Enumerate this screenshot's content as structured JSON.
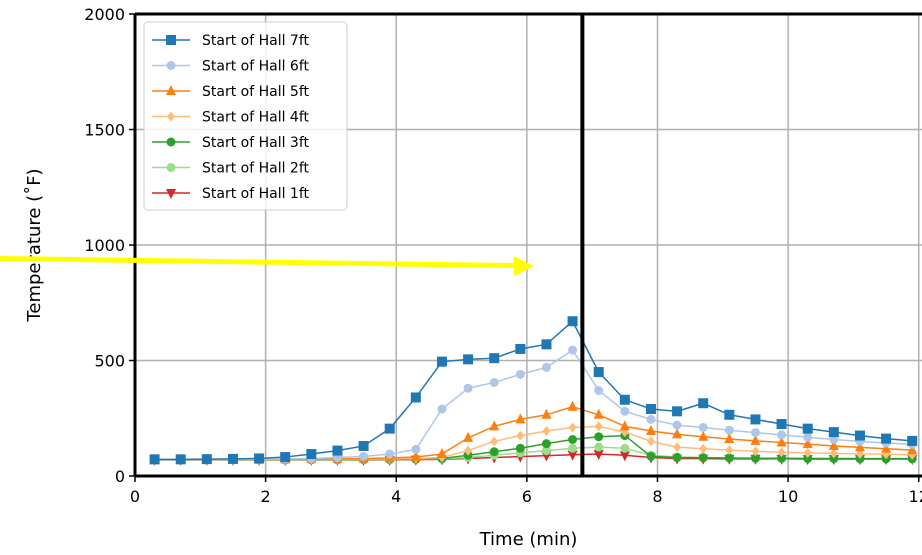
{
  "chart_data": {
    "type": "line",
    "title": "",
    "xlabel": "Time (min)",
    "ylabel": "Temperature (˚F)",
    "xlim": [
      0,
      12
    ],
    "ylim": [
      0,
      2000
    ],
    "xticks": [
      "0",
      "2",
      "4",
      "6",
      "8",
      "10",
      "12"
    ],
    "yticks": [
      "0",
      "500",
      "1000",
      "1500",
      "2000"
    ],
    "grid": true,
    "legend_position": "top-left",
    "vertical_line_x": 6.85,
    "annotation_arrow": {
      "color": "#ffff00",
      "from": [
        -2.2,
        950
      ],
      "to": [
        6.2,
        930
      ]
    },
    "x": [
      0.3,
      0.7,
      1.1,
      1.5,
      1.9,
      2.3,
      2.7,
      3.1,
      3.5,
      3.9,
      4.3,
      4.7,
      5.1,
      5.5,
      5.9,
      6.3,
      6.7,
      7.1,
      7.5,
      7.9,
      8.3,
      8.7,
      9.1,
      9.5,
      9.9,
      10.3,
      10.7,
      11.1,
      11.5,
      11.9
    ],
    "series": [
      {
        "name": "Start of Hall 7ft",
        "color": "#1f77b4",
        "marker": "square",
        "values": [
          72,
          72,
          73,
          74,
          76,
          82,
          95,
          110,
          130,
          205,
          340,
          495,
          505,
          510,
          550,
          570,
          670,
          450,
          330,
          290,
          280,
          315,
          265,
          245,
          225,
          205,
          190,
          175,
          162,
          152
        ]
      },
      {
        "name": "Start of Hall 6ft",
        "color": "#aec7e8",
        "marker": "circle",
        "values": [
          70,
          70,
          71,
          71,
          72,
          74,
          76,
          80,
          85,
          95,
          115,
          290,
          380,
          405,
          440,
          470,
          545,
          370,
          280,
          245,
          220,
          210,
          198,
          188,
          178,
          168,
          158,
          150,
          143,
          137
        ]
      },
      {
        "name": "Start of Hall 5ft",
        "color": "#ff7f0e",
        "marker": "triangle-up",
        "values": [
          70,
          70,
          70,
          71,
          71,
          72,
          73,
          74,
          75,
          78,
          82,
          95,
          165,
          215,
          245,
          265,
          300,
          265,
          215,
          195,
          180,
          170,
          160,
          152,
          145,
          138,
          130,
          124,
          118,
          112
        ]
      },
      {
        "name": "Start of Hall 4ft",
        "color": "#ffbb78",
        "marker": "diamond",
        "values": [
          70,
          70,
          70,
          70,
          71,
          71,
          72,
          72,
          73,
          74,
          76,
          80,
          110,
          150,
          175,
          195,
          210,
          215,
          190,
          150,
          125,
          118,
          112,
          107,
          103,
          100,
          98,
          96,
          94,
          92
        ]
      },
      {
        "name": "Start of Hall 3ft",
        "color": "#2ca02c",
        "marker": "circle",
        "values": [
          70,
          70,
          70,
          70,
          70,
          70,
          71,
          71,
          71,
          72,
          73,
          76,
          90,
          105,
          120,
          140,
          158,
          170,
          175,
          85,
          80,
          79,
          78,
          77,
          77,
          76,
          76,
          75,
          75,
          75
        ]
      },
      {
        "name": "Start of Hall 2ft",
        "color": "#98df8a",
        "marker": "circle",
        "values": [
          70,
          70,
          70,
          70,
          70,
          70,
          70,
          70,
          71,
          71,
          72,
          74,
          80,
          90,
          100,
          110,
          120,
          125,
          120,
          90,
          82,
          80,
          78,
          77,
          76,
          76,
          75,
          75,
          75,
          74
        ]
      },
      {
        "name": "Start of Hall 1ft",
        "color": "#d62728",
        "marker": "triangle-down",
        "values": [
          70,
          70,
          70,
          70,
          70,
          70,
          70,
          70,
          70,
          70,
          71,
          72,
          76,
          80,
          84,
          88,
          92,
          95,
          90,
          80,
          76,
          75,
          74,
          74,
          74,
          73,
          73,
          73,
          73,
          73
        ]
      }
    ]
  }
}
